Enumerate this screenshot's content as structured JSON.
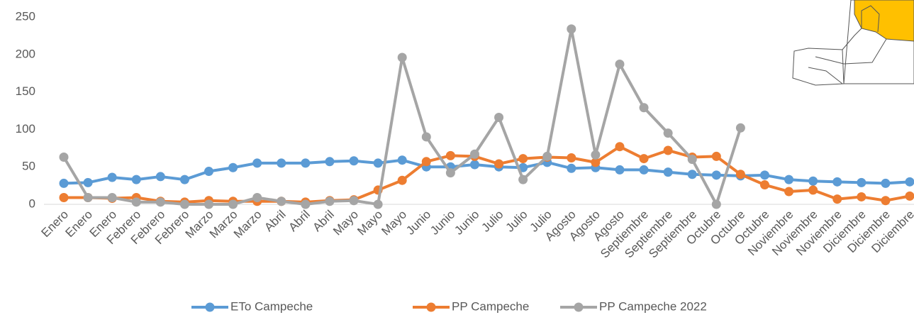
{
  "chart_data": {
    "type": "line",
    "categories": [
      "Enero",
      "Enero",
      "Enero",
      "Febrero",
      "Febrero",
      "Febrero",
      "Marzo",
      "Marzo",
      "Marzo",
      "Abril",
      "Abril",
      "Abril",
      "Mayo",
      "Mayo",
      "Mayo",
      "Junio",
      "Junio",
      "Junio",
      "Julio",
      "Julio",
      "Julio",
      "Agosto",
      "Agosto",
      "Agosto",
      "Septiembre",
      "Septiembre",
      "Septiembre",
      "Octubre",
      "Octubre",
      "Octubre",
      "Noviembre",
      "Noviembre",
      "Noviembre",
      "Diciembre",
      "Diciembre",
      "Diciembre"
    ],
    "series": [
      {
        "name": "ETo Campeche",
        "color": "#5b9bd5",
        "values": [
          28,
          29,
          36,
          33,
          37,
          33,
          44,
          49,
          55,
          55,
          55,
          57,
          58,
          55,
          59,
          50,
          50,
          53,
          50,
          49,
          56,
          48,
          49,
          46,
          46,
          43,
          40,
          39,
          38,
          39,
          33,
          31,
          30,
          29,
          28,
          30
        ]
      },
      {
        "name": "PP Campeche",
        "color": "#ed7d31",
        "values": [
          9,
          9,
          8,
          9,
          4,
          3,
          5,
          4,
          4,
          4,
          3,
          5,
          6,
          19,
          32,
          57,
          65,
          64,
          54,
          61,
          63,
          62,
          56,
          77,
          61,
          72,
          63,
          64,
          40,
          26,
          17,
          19,
          7,
          10,
          5,
          11
        ]
      },
      {
        "name": "PP Campeche 2022",
        "color": "#a5a5a5",
        "values": [
          63,
          9,
          9,
          3,
          3,
          0,
          0,
          0,
          9,
          4,
          0,
          4,
          5,
          0,
          196,
          90,
          42,
          67,
          116,
          33,
          64,
          234,
          66,
          187,
          129,
          95,
          60,
          0,
          102,
          null,
          null,
          null,
          null,
          null,
          null,
          null
        ]
      }
    ],
    "ylim": [
      0,
      250
    ],
    "yticks": [
      0,
      50,
      100,
      150,
      200,
      250
    ],
    "grid": false,
    "legend": "bottom"
  }
}
